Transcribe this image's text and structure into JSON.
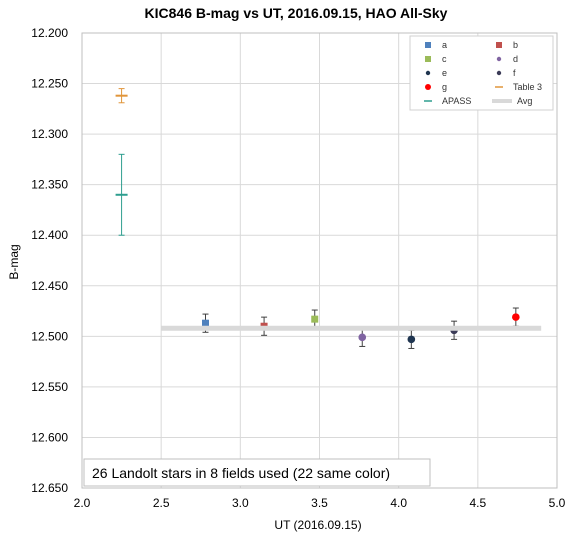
{
  "chart_data": {
    "type": "scatter",
    "title": "KIC846 B-mag vs UT, 2016.09.15, HAO All-Sky",
    "xlabel": "UT (2016.09.15)",
    "ylabel": "B-mag",
    "xlim": [
      2.0,
      5.0
    ],
    "ylim": [
      12.2,
      12.65
    ],
    "y_inverted": true,
    "x_ticks": [
      "2.0",
      "2.5",
      "3.0",
      "3.5",
      "4.0",
      "4.5",
      "5.0"
    ],
    "y_ticks": [
      "12.200",
      "12.250",
      "12.300",
      "12.350",
      "12.400",
      "12.450",
      "12.500",
      "12.550",
      "12.600",
      "12.650"
    ],
    "grid": true,
    "legend_position": "top-right",
    "series": [
      {
        "name": "a",
        "marker": "square",
        "color": "#4f81bd",
        "x": 2.78,
        "y": 12.487,
        "err": 0.009
      },
      {
        "name": "b",
        "marker": "square",
        "color": "#c0504d",
        "x": 3.15,
        "y": 12.49,
        "err": 0.009
      },
      {
        "name": "c",
        "marker": "square",
        "color": "#9bbb59",
        "x": 3.47,
        "y": 12.483,
        "err": 0.009
      },
      {
        "name": "d",
        "marker": "circle",
        "color": "#8064a2",
        "x": 3.77,
        "y": 12.501,
        "err": 0.009
      },
      {
        "name": "e",
        "marker": "circle",
        "color": "#1f3550",
        "x": 4.08,
        "y": 12.503,
        "err": 0.009
      },
      {
        "name": "f",
        "marker": "circle",
        "color": "#3b3b57",
        "x": 4.35,
        "y": 12.494,
        "err": 0.009
      },
      {
        "name": "g",
        "marker": "circle",
        "color": "#ff0000",
        "x": 4.74,
        "y": 12.481,
        "err": 0.009
      },
      {
        "name": "Table 3",
        "marker": "dash",
        "color": "#e0953a",
        "x": 2.25,
        "y": 12.262,
        "err": 0.007
      },
      {
        "name": "APASS",
        "marker": "dash",
        "color": "#2e9e8f",
        "x": 2.25,
        "y": 12.36,
        "err": 0.04
      },
      {
        "name": "Avg",
        "marker": "line",
        "color": "#d9d9d9",
        "x": [
          2.5,
          4.9
        ],
        "y": [
          12.492,
          12.492
        ]
      }
    ],
    "annotation": "26 Landolt stars in 8 fields used (22 same color)"
  }
}
